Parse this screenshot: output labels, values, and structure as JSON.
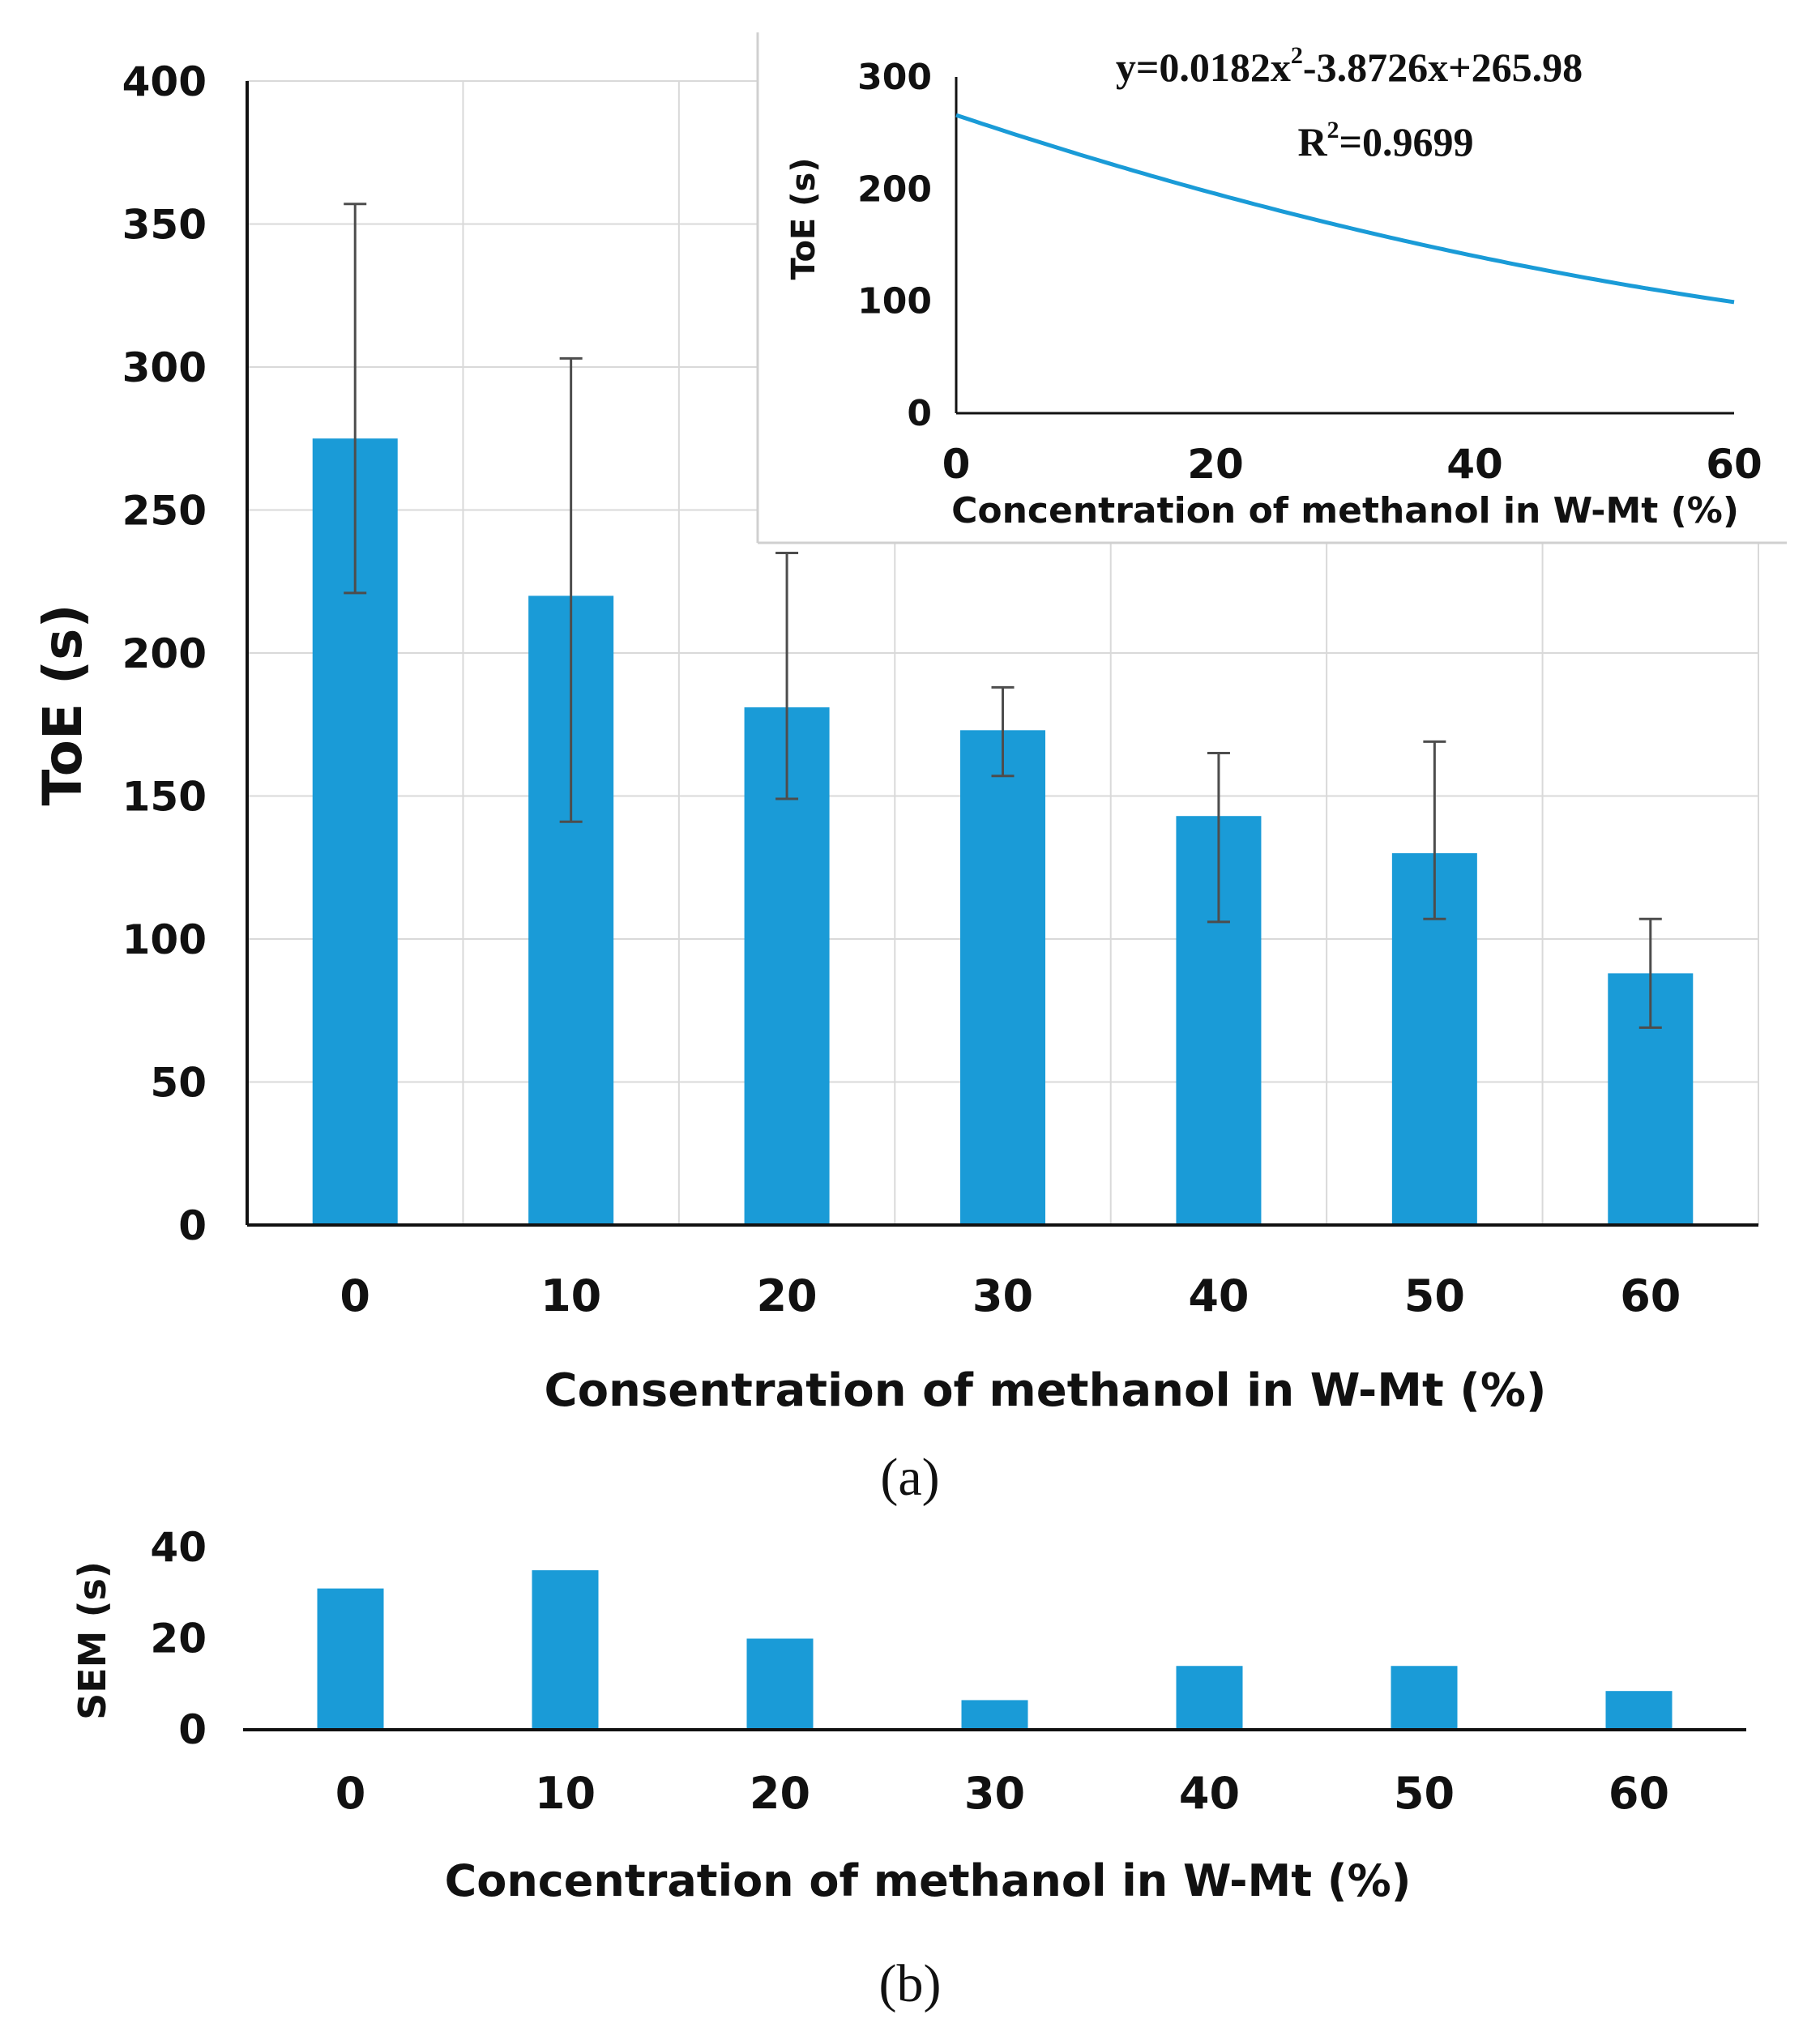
{
  "colors": {
    "bar": "#1a9bd7",
    "error_bar": "#4d4d4d",
    "axis": "#111111",
    "grid": "#d9d9d9",
    "inset_line": "#1a9bd7",
    "inset_border": "#d0d0d0"
  },
  "chart_data": [
    {
      "id": "panel-a",
      "type": "bar",
      "panel_label": "(a)",
      "categories": [
        "0",
        "10",
        "20",
        "30",
        "40",
        "50",
        "60"
      ],
      "values": [
        275,
        220,
        181,
        173,
        143,
        130,
        88
      ],
      "error_upper": [
        357,
        303,
        235,
        188,
        165,
        169,
        107
      ],
      "error_lower": [
        221,
        141,
        149,
        157,
        106,
        107,
        69
      ],
      "ylabel": "ToE (s)",
      "xlabel": "Consentration of methanol in W-Mt (%)",
      "ylim": [
        0,
        400
      ],
      "yticks": [
        0,
        50,
        100,
        150,
        200,
        250,
        300,
        350,
        400
      ],
      "grid": true
    },
    {
      "id": "panel-a-inset",
      "type": "line",
      "equation_prefix": "y=0.0182x",
      "equation_sup": "2",
      "equation_suffix": "-3.8726x+265.98",
      "r2_prefix": "R",
      "r2_sup": "2",
      "r2_suffix": "=0.9699",
      "coefficients": {
        "a": 0.0182,
        "b": -3.8726,
        "c": 265.98
      },
      "x_range": [
        0,
        60
      ],
      "ylabel": "ToE (s)",
      "xlabel": "Concentration of methanol in W-Mt (%)",
      "ylim": [
        0,
        300
      ],
      "yticks": [
        0,
        100,
        200,
        300
      ],
      "xticks": [
        0,
        20,
        40,
        60
      ],
      "grid": false
    },
    {
      "id": "panel-b",
      "type": "bar",
      "panel_label": "(b)",
      "categories": [
        "0",
        "10",
        "20",
        "30",
        "40",
        "50",
        "60"
      ],
      "values": [
        31,
        35,
        20,
        6.5,
        14,
        14,
        8.5
      ],
      "ylabel": "SEM (s)",
      "xlabel": "Concentration of methanol in W-Mt (%)",
      "ylim": [
        0,
        40
      ],
      "yticks": [
        0,
        20,
        40
      ],
      "grid": false
    }
  ]
}
